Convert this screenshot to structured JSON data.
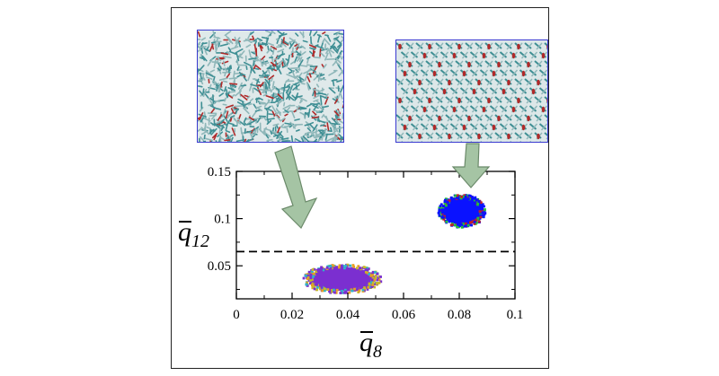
{
  "figure": {
    "panels": [
      "liquid-configuration-snapshot",
      "crystal-configuration-snapshot"
    ],
    "colors": {
      "liquid_cloud": "#7b2fd0",
      "crystal_cloud": "#0a12ff",
      "arrow_fill": "#a5c4a4",
      "threshold_line": "#000000",
      "molecule_teal": "#3f8f94",
      "molecule_red": "#b02a2a"
    }
  },
  "chart_data": {
    "type": "scatter",
    "xlabel": "q̄8",
    "ylabel": "q̄12",
    "xlabel_base": "q",
    "xlabel_sub": "8",
    "ylabel_base": "q",
    "ylabel_sub": "12",
    "xlim": [
      0,
      0.1
    ],
    "ylim": [
      0.015,
      0.15
    ],
    "x_ticks": [
      0,
      0.02,
      0.04,
      0.06,
      0.08,
      0.1
    ],
    "x_tick_labels": [
      "0",
      "0.02",
      "0.04",
      "0.06",
      "0.08",
      "0.1"
    ],
    "y_ticks": [
      0.05,
      0.1,
      0.15
    ],
    "y_tick_labels": [
      "0.05",
      "0.1",
      "0.15"
    ],
    "threshold_line": {
      "y": 0.065,
      "style": "dashed"
    },
    "clusters": [
      {
        "center": [
          0.038,
          0.036
        ],
        "spread": [
          0.0125,
          0.0135
        ],
        "color": "#7b2fd0"
      },
      {
        "center": [
          0.081,
          0.108
        ],
        "spread": [
          0.0075,
          0.0155
        ],
        "color": "#0a12ff"
      }
    ],
    "grid": false
  }
}
